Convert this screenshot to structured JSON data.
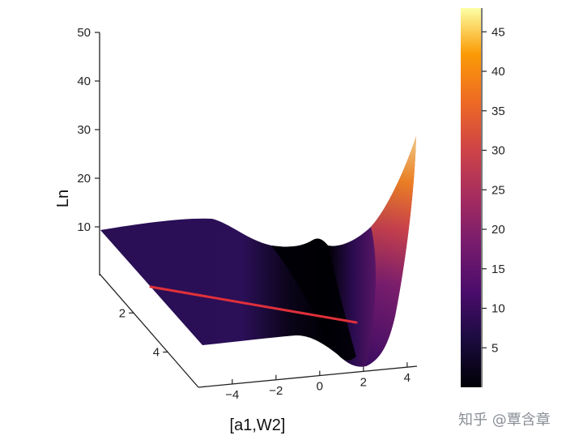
{
  "chart_data": {
    "type": "surface",
    "title": "",
    "zlabel": "Ln",
    "xlabel": "[a1,W2]",
    "zlim": [
      0,
      50
    ],
    "z_ticks": [
      10,
      20,
      30,
      40,
      50
    ],
    "x_ticks": [
      -4,
      -2,
      0,
      2,
      4
    ],
    "y_ticks": [
      2,
      4
    ],
    "colorbar": {
      "colormap": "inferno",
      "range": [
        0,
        48
      ],
      "ticks": [
        5,
        10,
        15,
        20,
        25,
        30,
        35,
        40,
        45
      ]
    },
    "path_line": {
      "color": "#e0303a",
      "description_points": [
        [
          -4,
          1.5
        ],
        [
          2,
          4
        ]
      ]
    }
  },
  "watermark": "知乎 @覃含章",
  "colors": {
    "path_line": "#e0303a",
    "axis": "#222222"
  }
}
